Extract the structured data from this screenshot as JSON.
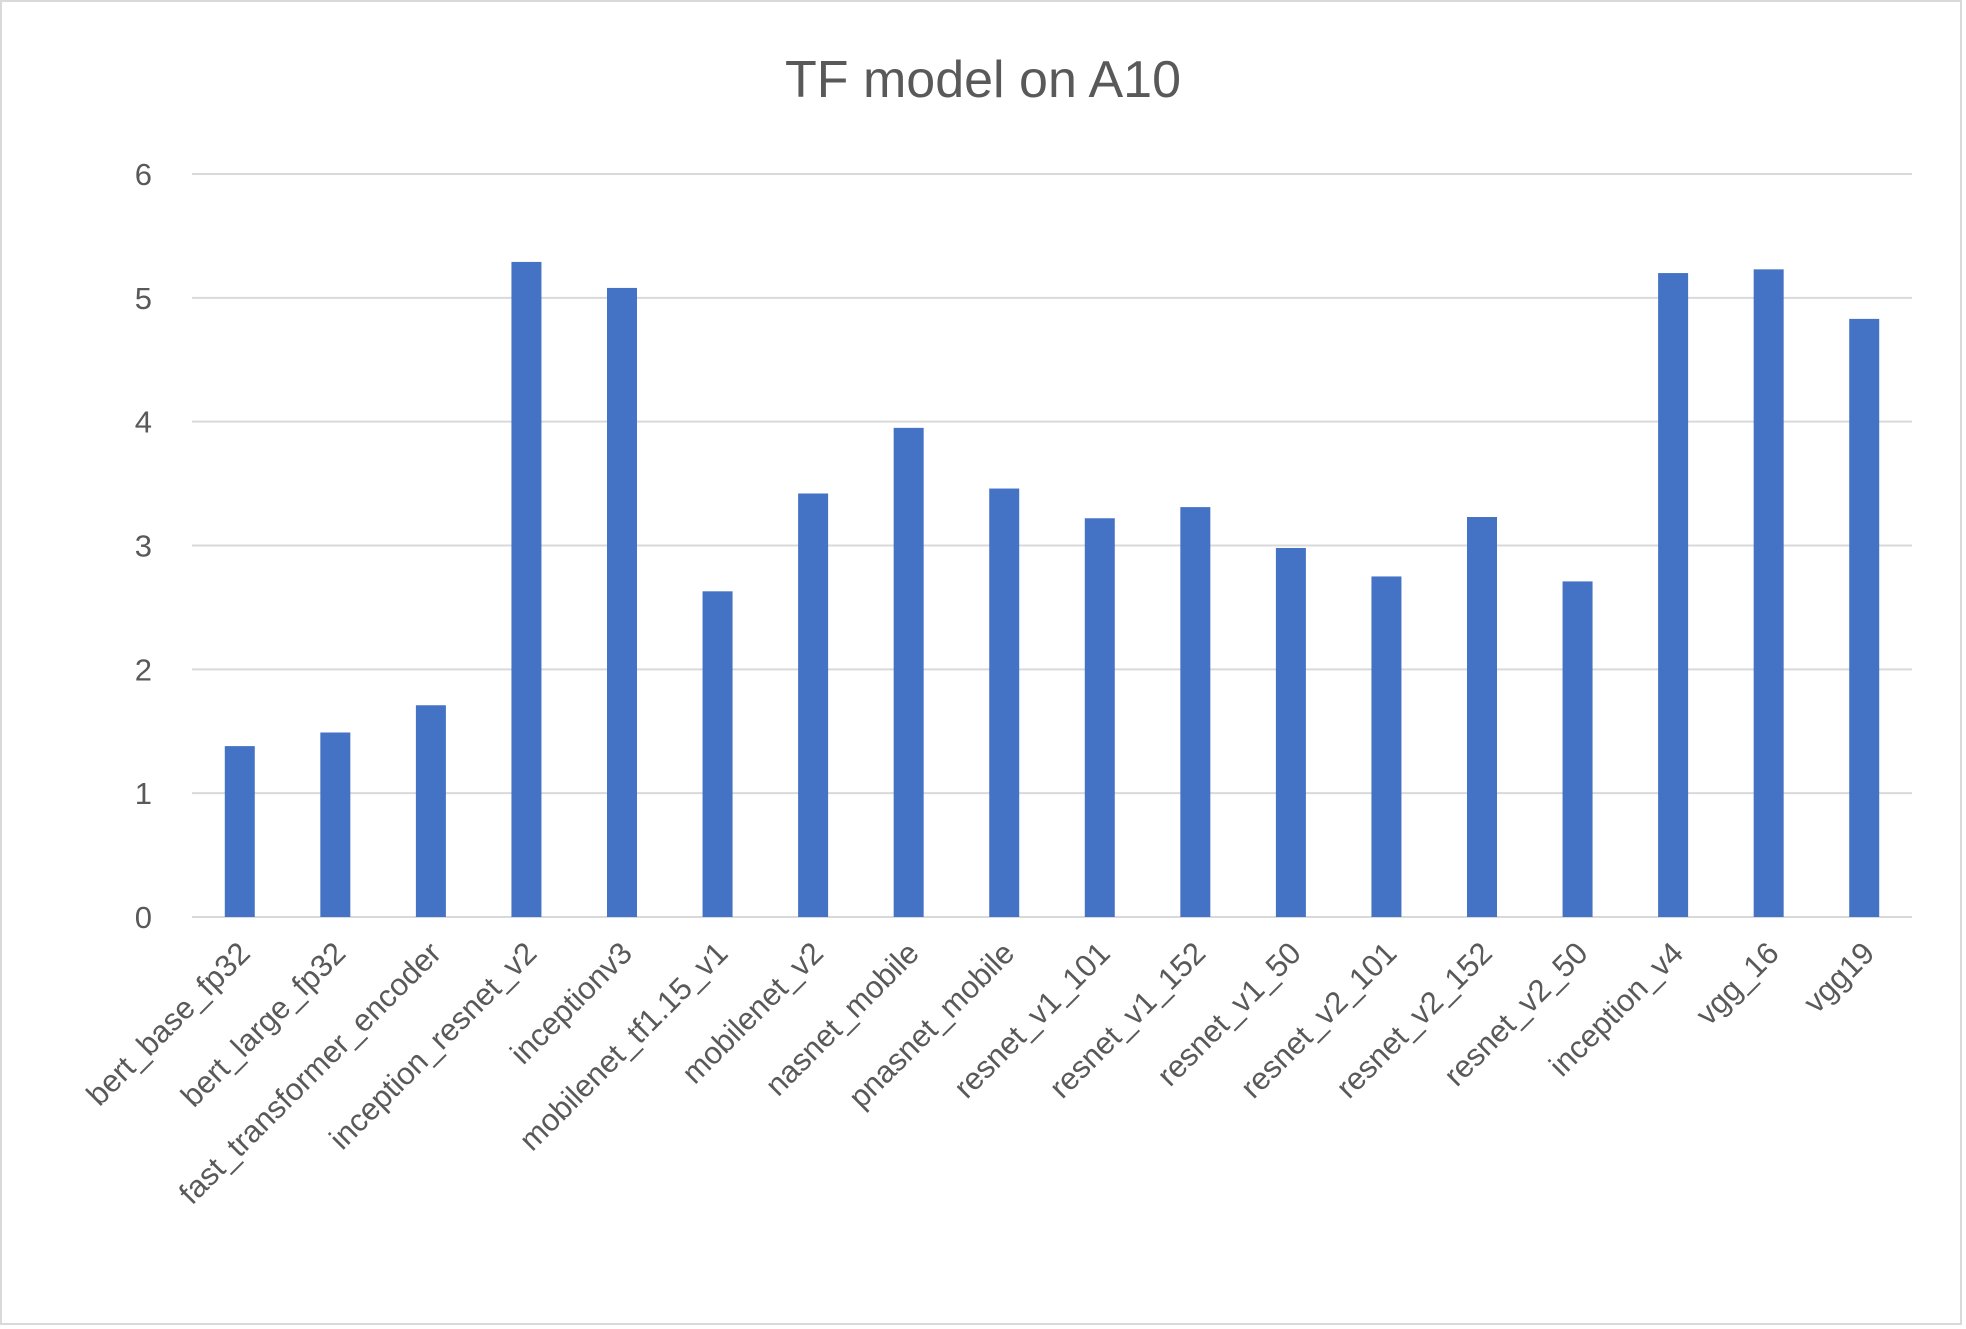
{
  "chart_data": {
    "type": "bar",
    "title": "TF model on A10",
    "xlabel": "",
    "ylabel": "",
    "ylim": [
      0,
      6
    ],
    "yticks": [
      0,
      1,
      2,
      3,
      4,
      5,
      6
    ],
    "grid": true,
    "legend": "none",
    "bar_color": "#4472C4",
    "categories": [
      "bert_base_fp32",
      "bert_large_fp32",
      "fast_transformer_encoder",
      "inception_resnet_v2",
      "inceptionv3",
      "mobilenet_tf1.15_v1",
      "mobilenet_v2",
      "nasnet_mobile",
      "pnasnet_mobile",
      "resnet_v1_101",
      "resnet_v1_152",
      "resnet_v1_50",
      "resnet_v2_101",
      "resnet_v2_152",
      "resnet_v2_50",
      "inception_v4",
      "vgg_16",
      "vgg19"
    ],
    "values": [
      1.38,
      1.49,
      1.71,
      5.29,
      5.08,
      2.63,
      3.42,
      3.95,
      3.46,
      3.22,
      3.31,
      2.98,
      2.75,
      3.23,
      2.71,
      5.2,
      5.23,
      4.83
    ]
  }
}
